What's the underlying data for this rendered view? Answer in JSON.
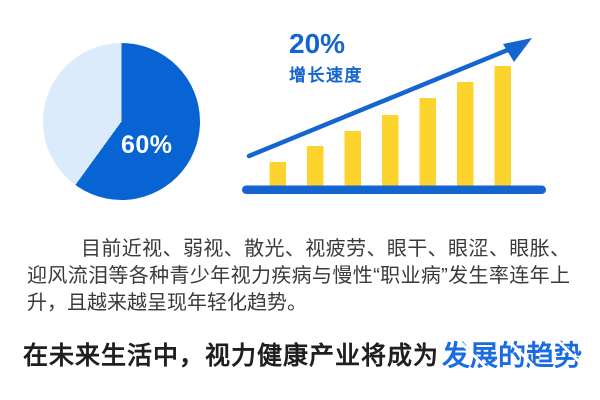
{
  "chart_data": [
    {
      "type": "pie",
      "title": "",
      "slices": [
        {
          "label": "60%",
          "value": 60,
          "color": "#0964d3"
        },
        {
          "label": "",
          "value": 40,
          "color": "#dcebfc"
        }
      ],
      "label": "60%",
      "label_color": "#ffffff",
      "legend_position": "none",
      "start_angle_deg": 0,
      "direction": "clockwise"
    },
    {
      "type": "bar",
      "categories": [
        "",
        "",
        "",
        "",
        "",
        "",
        ""
      ],
      "values": [
        24,
        40,
        55,
        71,
        88,
        104,
        120
      ],
      "ylim": [
        0,
        130
      ],
      "unit": "relative-height-px",
      "bar_color": "#fcd42d",
      "baseline_color": "#1565d1",
      "arrow_color": "#1565d1",
      "annotation_value": "20%",
      "annotation_label": "增长速度",
      "annotation_color": "#1565d1",
      "grid": false,
      "axes": "baseline-only",
      "trend": "rising-arrow"
    }
  ],
  "paragraph": {
    "text": "目前近视、弱视、散光、视疲劳、眼干、眼涩、眼胀、迎风流泪等各种青少年视力疾病与慢性“职业病”发生率连年上升，且越来越呈现年轻化趋势。"
  },
  "footer": {
    "prefix": "在未来生活中，视力健康产业将成为",
    "highlight": "发展的趋势",
    "prefix_color": "#1f1f1f",
    "highlight_color": "#1a6ce2"
  }
}
